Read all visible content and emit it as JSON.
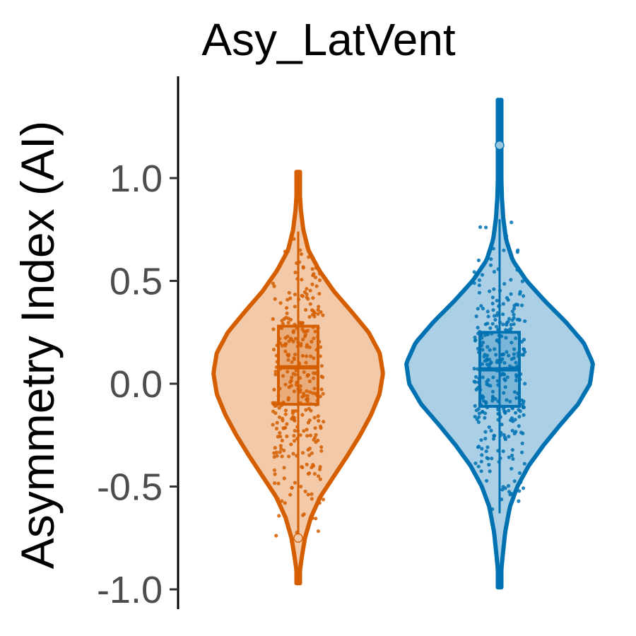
{
  "chart_data": {
    "type": "violin",
    "title": "Asy_LatVent",
    "xlabel": "",
    "ylabel": "Asymmetry Index (AI)",
    "ylim": [
      -1.05,
      1.48
    ],
    "yticks": [
      {
        "value": 1.0,
        "label": "1.0"
      },
      {
        "value": 0.5,
        "label": "0.5"
      },
      {
        "value": 0.0,
        "label": "0.0"
      },
      {
        "value": -0.5,
        "label": "-0.5"
      },
      {
        "value": -1.0,
        "label": "-1.0"
      }
    ],
    "grid": false,
    "legend": "none",
    "groups": [
      {
        "color": "#D55E00",
        "fill": "#F2C9A9",
        "range": [
          -0.97,
          1.03
        ],
        "box": {
          "q1": -0.1,
          "median": 0.08,
          "q3": 0.28,
          "whisker_low": -0.74,
          "whisker_high": 0.74
        },
        "density": [
          [
            -0.97,
            0.0
          ],
          [
            -0.85,
            0.04
          ],
          [
            -0.75,
            0.08
          ],
          [
            -0.65,
            0.15
          ],
          [
            -0.55,
            0.26
          ],
          [
            -0.45,
            0.42
          ],
          [
            -0.35,
            0.58
          ],
          [
            -0.25,
            0.73
          ],
          [
            -0.15,
            0.86
          ],
          [
            -0.05,
            0.96
          ],
          [
            0.05,
            1.0
          ],
          [
            0.15,
            0.96
          ],
          [
            0.25,
            0.83
          ],
          [
            0.35,
            0.63
          ],
          [
            0.45,
            0.42
          ],
          [
            0.55,
            0.25
          ],
          [
            0.65,
            0.12
          ],
          [
            0.75,
            0.06
          ],
          [
            0.85,
            0.03
          ],
          [
            0.95,
            0.015
          ],
          [
            1.03,
            0.0
          ]
        ],
        "outliers": [
          -0.75
        ]
      },
      {
        "color": "#0072B2",
        "fill": "#ABD0E6",
        "range": [
          -0.99,
          1.38
        ],
        "box": {
          "q1": -0.11,
          "median": 0.07,
          "q3": 0.25,
          "whisker_low": -0.63,
          "whisker_high": 0.8
        },
        "density": [
          [
            -0.99,
            0.0
          ],
          [
            -0.85,
            0.03
          ],
          [
            -0.72,
            0.06
          ],
          [
            -0.6,
            0.11
          ],
          [
            -0.5,
            0.19
          ],
          [
            -0.4,
            0.31
          ],
          [
            -0.3,
            0.47
          ],
          [
            -0.2,
            0.65
          ],
          [
            -0.1,
            0.84
          ],
          [
            0.0,
            0.97
          ],
          [
            0.1,
            1.0
          ],
          [
            0.2,
            0.9
          ],
          [
            0.3,
            0.71
          ],
          [
            0.4,
            0.49
          ],
          [
            0.5,
            0.29
          ],
          [
            0.6,
            0.14
          ],
          [
            0.7,
            0.07
          ],
          [
            0.8,
            0.04
          ],
          [
            0.9,
            0.025
          ],
          [
            1.05,
            0.015
          ],
          [
            1.2,
            0.008
          ],
          [
            1.38,
            0.0
          ]
        ],
        "outliers": [
          1.16
        ]
      }
    ]
  }
}
